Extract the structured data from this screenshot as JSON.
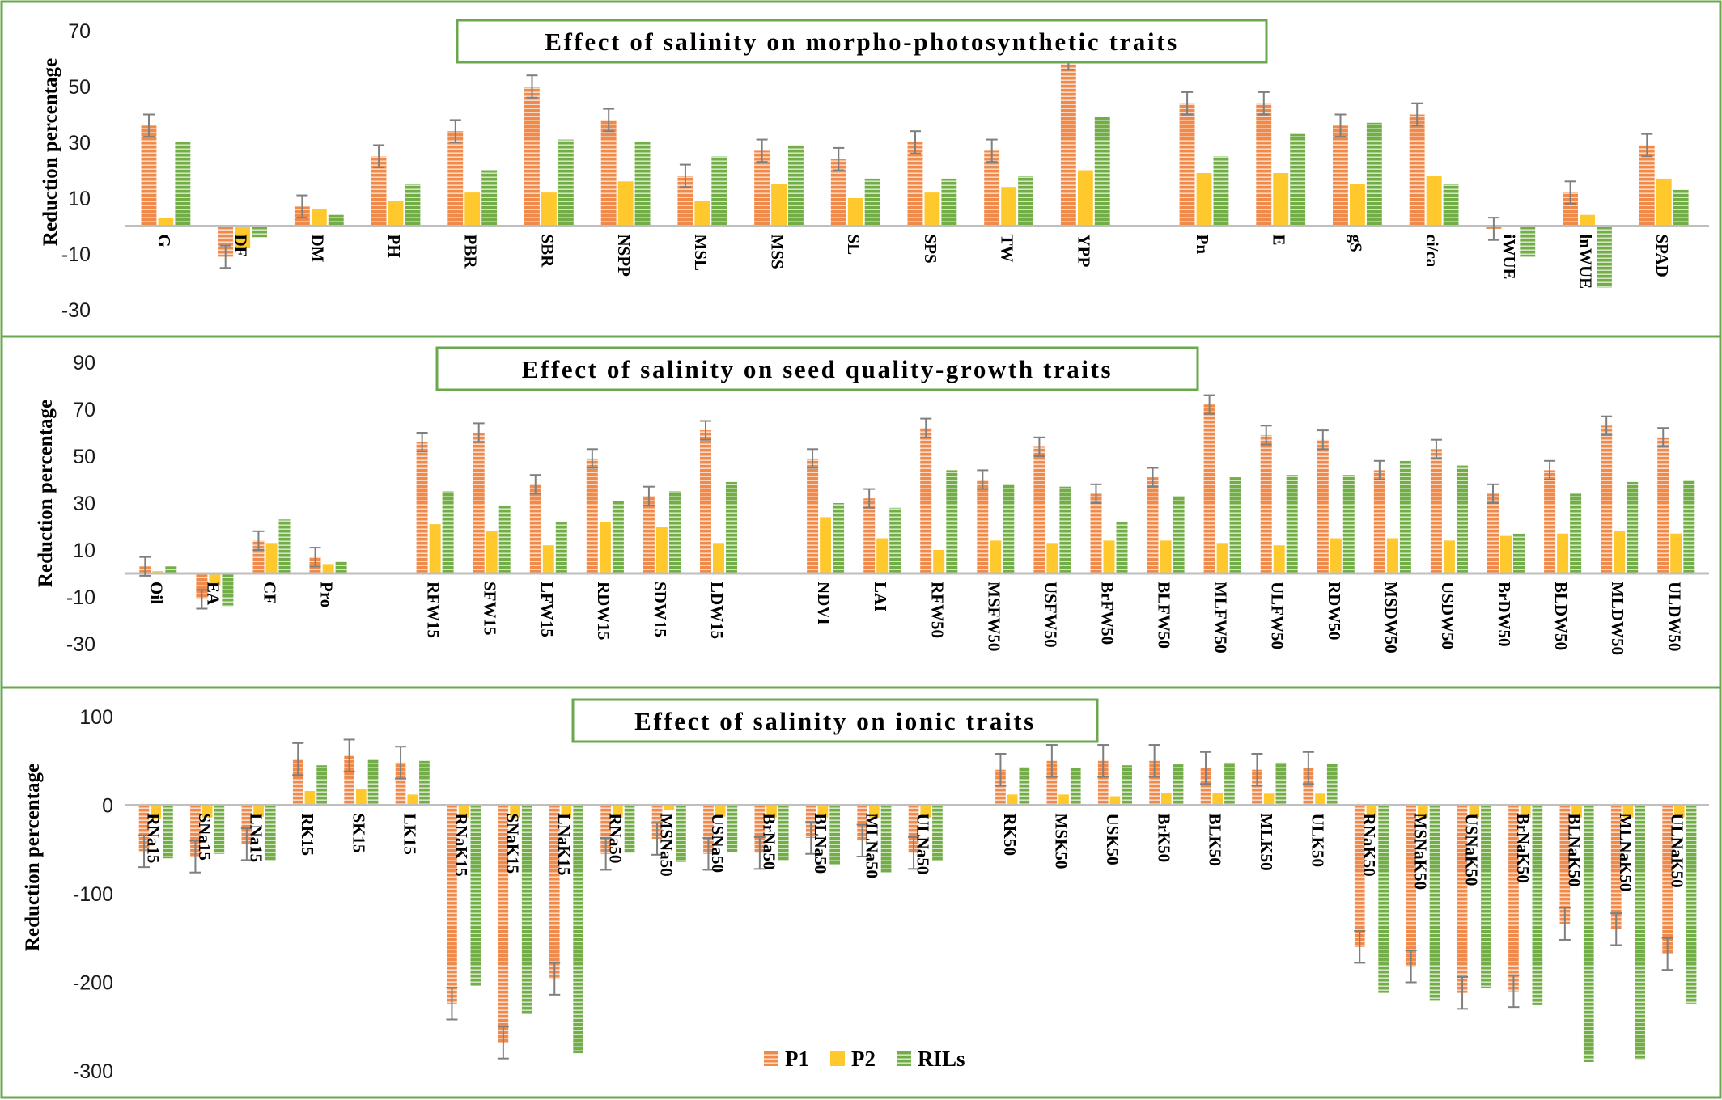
{
  "colors": {
    "P1": "#f08a4b",
    "P2": "#ffc92e",
    "RILs": "#72ad47",
    "frame": "#6aa84f",
    "error_bar": "#7f7f7f",
    "zero_line": "#bfbfbf"
  },
  "legend": [
    "P1",
    "P2",
    "RILs"
  ],
  "chart_data": [
    {
      "type": "bar",
      "title": "Effect of salinity on morpho-photosynthetic traits",
      "ylabel": "Reduction percentage",
      "ylim": [
        -30,
        70
      ],
      "yticks": [
        70,
        50,
        30,
        10,
        -10,
        -30
      ],
      "series_names": [
        "P1",
        "P2",
        "RILs"
      ],
      "groups": [
        {
          "label": "G",
          "P1": 36,
          "P2": 3,
          "RILs": 30,
          "err": 4
        },
        {
          "label": "DF",
          "P1": -11,
          "P2": -8,
          "RILs": -4,
          "err": 4
        },
        {
          "label": "DM",
          "P1": 7,
          "P2": 6,
          "RILs": 4,
          "err": 4
        },
        {
          "label": "PH",
          "P1": 25,
          "P2": 9,
          "RILs": 15,
          "err": 4
        },
        {
          "label": "PBR",
          "P1": 34,
          "P2": 12,
          "RILs": 20,
          "err": 4
        },
        {
          "label": "SBR",
          "P1": 50,
          "P2": 12,
          "RILs": 31,
          "err": 4
        },
        {
          "label": "NSPP",
          "P1": 38,
          "P2": 16,
          "RILs": 30,
          "err": 4
        },
        {
          "label": "MSL",
          "P1": 18,
          "P2": 9,
          "RILs": 25,
          "err": 4
        },
        {
          "label": "MSS",
          "P1": 27,
          "P2": 15,
          "RILs": 29,
          "err": 4
        },
        {
          "label": "SL",
          "P1": 24,
          "P2": 10,
          "RILs": 17,
          "err": 4
        },
        {
          "label": "SPS",
          "P1": 30,
          "P2": 12,
          "RILs": 17,
          "err": 4
        },
        {
          "label": "TW",
          "P1": 27,
          "P2": 14,
          "RILs": 18,
          "err": 4
        },
        {
          "label": "YPP",
          "P1": 58,
          "P2": 20,
          "RILs": 39,
          "err": 2
        },
        {
          "label": "Pn",
          "P1": 44,
          "P2": 19,
          "RILs": 25,
          "err": 4,
          "gap_before": true
        },
        {
          "label": "E",
          "P1": 44,
          "P2": 19,
          "RILs": 33,
          "err": 4
        },
        {
          "label": "gS",
          "P1": 36,
          "P2": 15,
          "RILs": 37,
          "err": 4
        },
        {
          "label": "ci/ca",
          "P1": 40,
          "P2": 18,
          "RILs": 15,
          "err": 4
        },
        {
          "label": "iWUE",
          "P1": -1,
          "P2": 0,
          "RILs": -11,
          "err": 4
        },
        {
          "label": "lnWUE",
          "P1": 12,
          "P2": 4,
          "RILs": -22,
          "err": 4
        },
        {
          "label": "SPAD",
          "P1": 29,
          "P2": 17,
          "RILs": 13,
          "err": 4
        }
      ]
    },
    {
      "type": "bar",
      "title": "Effect of salinity on seed quality-growth traits",
      "ylabel": "Reduction percentage",
      "ylim": [
        -30,
        90
      ],
      "yticks": [
        90,
        70,
        50,
        30,
        10,
        -10,
        -30
      ],
      "series_names": [
        "P1",
        "P2",
        "RILs"
      ],
      "groups": [
        {
          "label": "Oil",
          "P1": 3,
          "P2": 1,
          "RILs": 3,
          "err": 4
        },
        {
          "label": "EA",
          "P1": -11,
          "P2": -5,
          "RILs": -14,
          "err": 4
        },
        {
          "label": "CF",
          "P1": 14,
          "P2": 13,
          "RILs": 23,
          "err": 4
        },
        {
          "label": "Pro",
          "P1": 7,
          "P2": 4,
          "RILs": 5,
          "err": 4
        },
        {
          "label": "RFW15",
          "P1": 56,
          "P2": 21,
          "RILs": 35,
          "err": 4,
          "gap_before": true
        },
        {
          "label": "SFW15",
          "P1": 60,
          "P2": 18,
          "RILs": 29,
          "err": 4
        },
        {
          "label": "LFW15",
          "P1": 38,
          "P2": 12,
          "RILs": 22,
          "err": 4
        },
        {
          "label": "RDW15",
          "P1": 49,
          "P2": 22,
          "RILs": 31,
          "err": 4
        },
        {
          "label": "SDW15",
          "P1": 33,
          "P2": 20,
          "RILs": 35,
          "err": 4
        },
        {
          "label": "LDW15",
          "P1": 61,
          "P2": 13,
          "RILs": 39,
          "err": 4
        },
        {
          "label": "NDVI",
          "P1": 49,
          "P2": 24,
          "RILs": 30,
          "err": 4,
          "gap_before": true
        },
        {
          "label": "LAI",
          "P1": 32,
          "P2": 15,
          "RILs": 28,
          "err": 4
        },
        {
          "label": "RFW50",
          "P1": 62,
          "P2": 10,
          "RILs": 44,
          "err": 4
        },
        {
          "label": "MSFW50",
          "P1": 40,
          "P2": 14,
          "RILs": 38,
          "err": 4
        },
        {
          "label": "USFW50",
          "P1": 54,
          "P2": 13,
          "RILs": 37,
          "err": 4
        },
        {
          "label": "BrFW50",
          "P1": 34,
          "P2": 14,
          "RILs": 22,
          "err": 4
        },
        {
          "label": "BLFW50",
          "P1": 41,
          "P2": 14,
          "RILs": 33,
          "err": 4
        },
        {
          "label": "MLFW50",
          "P1": 72,
          "P2": 13,
          "RILs": 41,
          "err": 4
        },
        {
          "label": "ULFW50",
          "P1": 59,
          "P2": 12,
          "RILs": 42,
          "err": 4
        },
        {
          "label": "RDW50",
          "P1": 57,
          "P2": 15,
          "RILs": 42,
          "err": 4
        },
        {
          "label": "MSDW50",
          "P1": 44,
          "P2": 15,
          "RILs": 48,
          "err": 4
        },
        {
          "label": "USDW50",
          "P1": 53,
          "P2": 14,
          "RILs": 46,
          "err": 4
        },
        {
          "label": "BrDW50",
          "P1": 34,
          "P2": 16,
          "RILs": 17,
          "err": 4
        },
        {
          "label": "BLDW50",
          "P1": 44,
          "P2": 17,
          "RILs": 34,
          "err": 4
        },
        {
          "label": "MLDW50",
          "P1": 63,
          "P2": 18,
          "RILs": 39,
          "err": 4
        },
        {
          "label": "ULDW50",
          "P1": 58,
          "P2": 17,
          "RILs": 40,
          "err": 4
        }
      ]
    },
    {
      "type": "bar",
      "title": "Effect of salinity on ionic traits",
      "ylabel": "Reduction percentage",
      "ylim": [
        -300,
        100
      ],
      "yticks": [
        100,
        0,
        -100,
        -200,
        -300
      ],
      "series_names": [
        "P1",
        "P2",
        "RILs"
      ],
      "groups": [
        {
          "label": "RNa15",
          "P1": -52,
          "P2": -15,
          "RILs": -60,
          "err": 18
        },
        {
          "label": "SNa15",
          "P1": -58,
          "P2": -14,
          "RILs": -55,
          "err": 18
        },
        {
          "label": "LNa15",
          "P1": -44,
          "P2": -13,
          "RILs": -62,
          "err": 18
        },
        {
          "label": "RK15",
          "P1": 52,
          "P2": 16,
          "RILs": 45,
          "err": 18
        },
        {
          "label": "SK15",
          "P1": 56,
          "P2": 18,
          "RILs": 52,
          "err": 18
        },
        {
          "label": "LK15",
          "P1": 48,
          "P2": 12,
          "RILs": 50,
          "err": 18
        },
        {
          "label": "RNaK15",
          "P1": -224,
          "P2": -14,
          "RILs": -204,
          "err": 18
        },
        {
          "label": "SNaK15",
          "P1": -268,
          "P2": -14,
          "RILs": -236,
          "err": 18
        },
        {
          "label": "LNaK15",
          "P1": -196,
          "P2": -14,
          "RILs": -280,
          "err": 18
        },
        {
          "label": "RNa50",
          "P1": -55,
          "P2": -14,
          "RILs": -54,
          "err": 18
        },
        {
          "label": "MSNa50",
          "P1": -38,
          "P2": -6,
          "RILs": -64,
          "err": 18
        },
        {
          "label": "USNa50",
          "P1": -55,
          "P2": -13,
          "RILs": -53,
          "err": 18
        },
        {
          "label": "BrNa50",
          "P1": -54,
          "P2": -14,
          "RILs": -62,
          "err": 18
        },
        {
          "label": "BLNa50",
          "P1": -37,
          "P2": -14,
          "RILs": -67,
          "err": 18
        },
        {
          "label": "MLNa50",
          "P1": -40,
          "P2": -14,
          "RILs": -76,
          "err": 18
        },
        {
          "label": "ULNa50",
          "P1": -54,
          "P2": -14,
          "RILs": -63,
          "err": 18
        },
        {
          "label": "RK50",
          "P1": 40,
          "P2": 12,
          "RILs": 43,
          "err": 18,
          "gap_before": true
        },
        {
          "label": "MSK50",
          "P1": 50,
          "P2": 12,
          "RILs": 42,
          "err": 18
        },
        {
          "label": "USK50",
          "P1": 50,
          "P2": 10,
          "RILs": 45,
          "err": 18
        },
        {
          "label": "BrK50",
          "P1": 50,
          "P2": 14,
          "RILs": 46,
          "err": 18
        },
        {
          "label": "BLK50",
          "P1": 42,
          "P2": 14,
          "RILs": 48,
          "err": 18
        },
        {
          "label": "MLK50",
          "P1": 40,
          "P2": 13,
          "RILs": 48,
          "err": 18
        },
        {
          "label": "ULK50",
          "P1": 42,
          "P2": 13,
          "RILs": 47,
          "err": 18
        },
        {
          "label": "RNaK50",
          "P1": -160,
          "P2": -14,
          "RILs": -212,
          "err": 18
        },
        {
          "label": "MSNaK50",
          "P1": -182,
          "P2": -14,
          "RILs": -220,
          "err": 18
        },
        {
          "label": "USNaK50",
          "P1": -212,
          "P2": -14,
          "RILs": -206,
          "err": 18
        },
        {
          "label": "BrNaK50",
          "P1": -210,
          "P2": -14,
          "RILs": -225,
          "err": 18
        },
        {
          "label": "BLNaK50",
          "P1": -134,
          "P2": -14,
          "RILs": -290,
          "err": 18
        },
        {
          "label": "MLNaK50",
          "P1": -140,
          "P2": -14,
          "RILs": -287,
          "err": 18
        },
        {
          "label": "ULNaK50",
          "P1": -168,
          "P2": -14,
          "RILs": -224,
          "err": 18
        }
      ]
    }
  ]
}
